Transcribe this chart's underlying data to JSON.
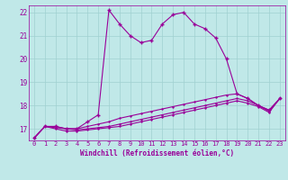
{
  "xlabel": "Windchill (Refroidissement éolien,°C)",
  "bg_color": "#c0e8e8",
  "line_color": "#990099",
  "grid_color": "#a0d0d0",
  "x_values": [
    0,
    1,
    2,
    3,
    4,
    5,
    6,
    7,
    8,
    9,
    10,
    11,
    12,
    13,
    14,
    15,
    16,
    17,
    18,
    19,
    20,
    21,
    22,
    23
  ],
  "line1": [
    16.6,
    17.1,
    17.1,
    17.0,
    17.0,
    17.3,
    17.6,
    22.1,
    21.5,
    21.0,
    20.7,
    20.8,
    21.5,
    21.9,
    22.0,
    21.5,
    21.3,
    20.9,
    20.0,
    18.5,
    18.3,
    18.0,
    17.8,
    18.3
  ],
  "line2": [
    16.6,
    17.1,
    17.1,
    17.0,
    17.0,
    17.1,
    17.2,
    17.3,
    17.45,
    17.55,
    17.65,
    17.75,
    17.85,
    17.95,
    18.05,
    18.15,
    18.25,
    18.35,
    18.45,
    18.5,
    18.3,
    18.0,
    17.8,
    18.3
  ],
  "line3": [
    16.6,
    17.1,
    17.05,
    17.0,
    16.95,
    17.0,
    17.05,
    17.1,
    17.2,
    17.3,
    17.4,
    17.5,
    17.6,
    17.7,
    17.8,
    17.9,
    18.0,
    18.1,
    18.2,
    18.3,
    18.2,
    18.0,
    17.75,
    18.3
  ],
  "line4": [
    16.6,
    17.1,
    17.0,
    16.9,
    16.9,
    16.95,
    17.0,
    17.05,
    17.1,
    17.2,
    17.3,
    17.4,
    17.5,
    17.6,
    17.7,
    17.8,
    17.9,
    18.0,
    18.1,
    18.2,
    18.1,
    17.95,
    17.7,
    18.3
  ],
  "ylim": [
    16.5,
    22.3
  ],
  "xlim": [
    -0.5,
    23.5
  ],
  "yticks": [
    17,
    18,
    19,
    20,
    21,
    22
  ],
  "xticks": [
    0,
    1,
    2,
    3,
    4,
    5,
    6,
    7,
    8,
    9,
    10,
    11,
    12,
    13,
    14,
    15,
    16,
    17,
    18,
    19,
    20,
    21,
    22,
    23
  ],
  "tick_fontsize": 5.5,
  "xlabel_fontsize": 5.5,
  "line_width": 0.8,
  "marker_size": 2.0
}
